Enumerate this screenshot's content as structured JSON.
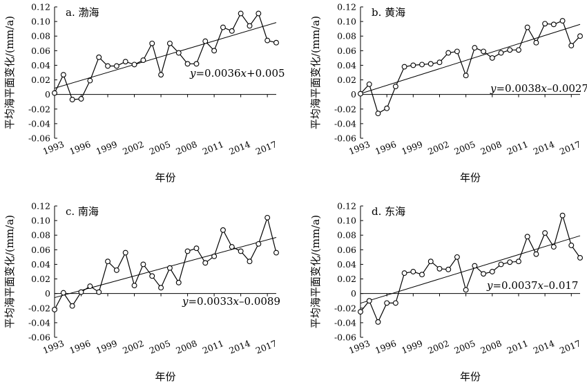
{
  "chart_data": [
    {
      "type": "line",
      "panel_label": "a. 渤海",
      "xlabel": "年份",
      "ylabel": "平均海平面变化/(mm/a)",
      "xlim": [
        1993,
        2018
      ],
      "ylim": [
        -0.06,
        0.12
      ],
      "yticks": [
        "0.12",
        "0.10",
        "0.08",
        "0.06",
        "0.04",
        "0.02",
        "0",
        "-0.02",
        "-0.04",
        "-0.06"
      ],
      "xticks": [
        "1993",
        "1996",
        "1999",
        "2002",
        "2005",
        "2008",
        "2011",
        "2014",
        "2017"
      ],
      "x": [
        1993,
        1994,
        1995,
        1996,
        1997,
        1998,
        1999,
        2000,
        2001,
        2002,
        2003,
        2004,
        2005,
        2006,
        2007,
        2008,
        2009,
        2010,
        2011,
        2012,
        2013,
        2014,
        2015,
        2016,
        2017,
        2018
      ],
      "values": [
        0.002,
        0.027,
        -0.007,
        -0.006,
        0.019,
        0.051,
        0.039,
        0.039,
        0.045,
        0.041,
        0.047,
        0.07,
        0.027,
        0.07,
        0.057,
        0.042,
        0.042,
        0.073,
        0.06,
        0.092,
        0.087,
        0.111,
        0.094,
        0.111,
        0.074,
        0.071
      ],
      "trend": {
        "slope": 0.0036,
        "intercept": 0.005
      },
      "equation": {
        "y": "y",
        "eq": "=0.0036",
        "x": "x",
        "rest": "+0.005"
      }
    },
    {
      "type": "line",
      "panel_label": "b. 黄海",
      "xlabel": "年份",
      "ylabel": "平均海平面变化/(mm/a)",
      "xlim": [
        1993,
        2018
      ],
      "ylim": [
        -0.06,
        0.12
      ],
      "yticks": [
        "0.12",
        "0.10",
        "0.08",
        "0.06",
        "0.04",
        "0.02",
        "0",
        "-0.02",
        "-0.04",
        "-0.06"
      ],
      "xticks": [
        "1993",
        "1996",
        "1999",
        "2002",
        "2005",
        "2008",
        "2011",
        "2014",
        "2017"
      ],
      "x": [
        1993,
        1994,
        1995,
        1996,
        1997,
        1998,
        1999,
        2000,
        2001,
        2002,
        2003,
        2004,
        2005,
        2006,
        2007,
        2008,
        2009,
        2010,
        2011,
        2012,
        2013,
        2014,
        2015,
        2016,
        2017,
        2018
      ],
      "values": [
        0.001,
        0.014,
        -0.026,
        -0.019,
        0.011,
        0.038,
        0.04,
        0.041,
        0.042,
        0.044,
        0.057,
        0.059,
        0.026,
        0.064,
        0.059,
        0.05,
        0.057,
        0.061,
        0.061,
        0.092,
        0.071,
        0.097,
        0.096,
        0.101,
        0.067,
        0.08
      ],
      "trend": {
        "slope": 0.0038,
        "intercept": -0.0027
      },
      "equation": {
        "y": "y",
        "eq": "=0.0038",
        "x": "x",
        "rest": "–0.0027"
      }
    },
    {
      "type": "line",
      "panel_label": "c. 南海",
      "xlabel": "年份",
      "ylabel": "平均海平面变化/(mm/a)",
      "xlim": [
        1993,
        2018
      ],
      "ylim": [
        -0.06,
        0.12
      ],
      "yticks": [
        "0.12",
        "0.10",
        "0.08",
        "0.06",
        "0.04",
        "0.02",
        "0",
        "-0.02",
        "-0.04",
        "-0.06"
      ],
      "xticks": [
        "1993",
        "1996",
        "1999",
        "2002",
        "2005",
        "2008",
        "2011",
        "2014",
        "2017"
      ],
      "x": [
        1993,
        1994,
        1995,
        1996,
        1997,
        1998,
        1999,
        2000,
        2001,
        2002,
        2003,
        2004,
        2005,
        2006,
        2007,
        2008,
        2009,
        2010,
        2011,
        2012,
        2013,
        2014,
        2015,
        2016,
        2017,
        2018
      ],
      "values": [
        -0.022,
        0.001,
        -0.017,
        0.002,
        0.01,
        0.002,
        0.044,
        0.032,
        0.056,
        0.011,
        0.04,
        0.024,
        0.008,
        0.035,
        0.015,
        0.058,
        0.062,
        0.042,
        0.051,
        0.087,
        0.064,
        0.058,
        0.044,
        0.068,
        0.104,
        0.056
      ],
      "trend": {
        "slope": 0.0033,
        "intercept": -0.0089
      },
      "equation": {
        "y": "y",
        "eq": "=0.0033",
        "x": "x",
        "rest": "–0.0089"
      }
    },
    {
      "type": "line",
      "panel_label": "d. 东海",
      "xlabel": "年份",
      "ylabel": "平均海平面变化/(mm/a)",
      "xlim": [
        1993,
        2018
      ],
      "ylim": [
        -0.06,
        0.12
      ],
      "yticks": [
        "0.12",
        "0.10",
        "0.08",
        "0.06",
        "0.04",
        "0.02",
        "0",
        "-0.02",
        "-0.04",
        "-0.06"
      ],
      "xticks": [
        "1993",
        "1996",
        "1999",
        "2002",
        "2005",
        "2008",
        "2011",
        "2014",
        "2017"
      ],
      "x": [
        1993,
        1994,
        1995,
        1996,
        1997,
        1998,
        1999,
        2000,
        2001,
        2002,
        2003,
        2004,
        2005,
        2006,
        2007,
        2008,
        2009,
        2010,
        2011,
        2012,
        2013,
        2014,
        2015,
        2016,
        2017,
        2018
      ],
      "values": [
        -0.025,
        -0.01,
        -0.039,
        -0.013,
        -0.013,
        0.028,
        0.03,
        0.026,
        0.044,
        0.034,
        0.033,
        0.05,
        0.005,
        0.038,
        0.027,
        0.03,
        0.04,
        0.043,
        0.044,
        0.078,
        0.054,
        0.083,
        0.064,
        0.107,
        0.066,
        0.049
      ],
      "trend": {
        "slope": 0.0037,
        "intercept": -0.017
      },
      "equation": {
        "y": "y",
        "eq": "=0.0037",
        "x": "x",
        "rest": "–0.017"
      }
    }
  ]
}
